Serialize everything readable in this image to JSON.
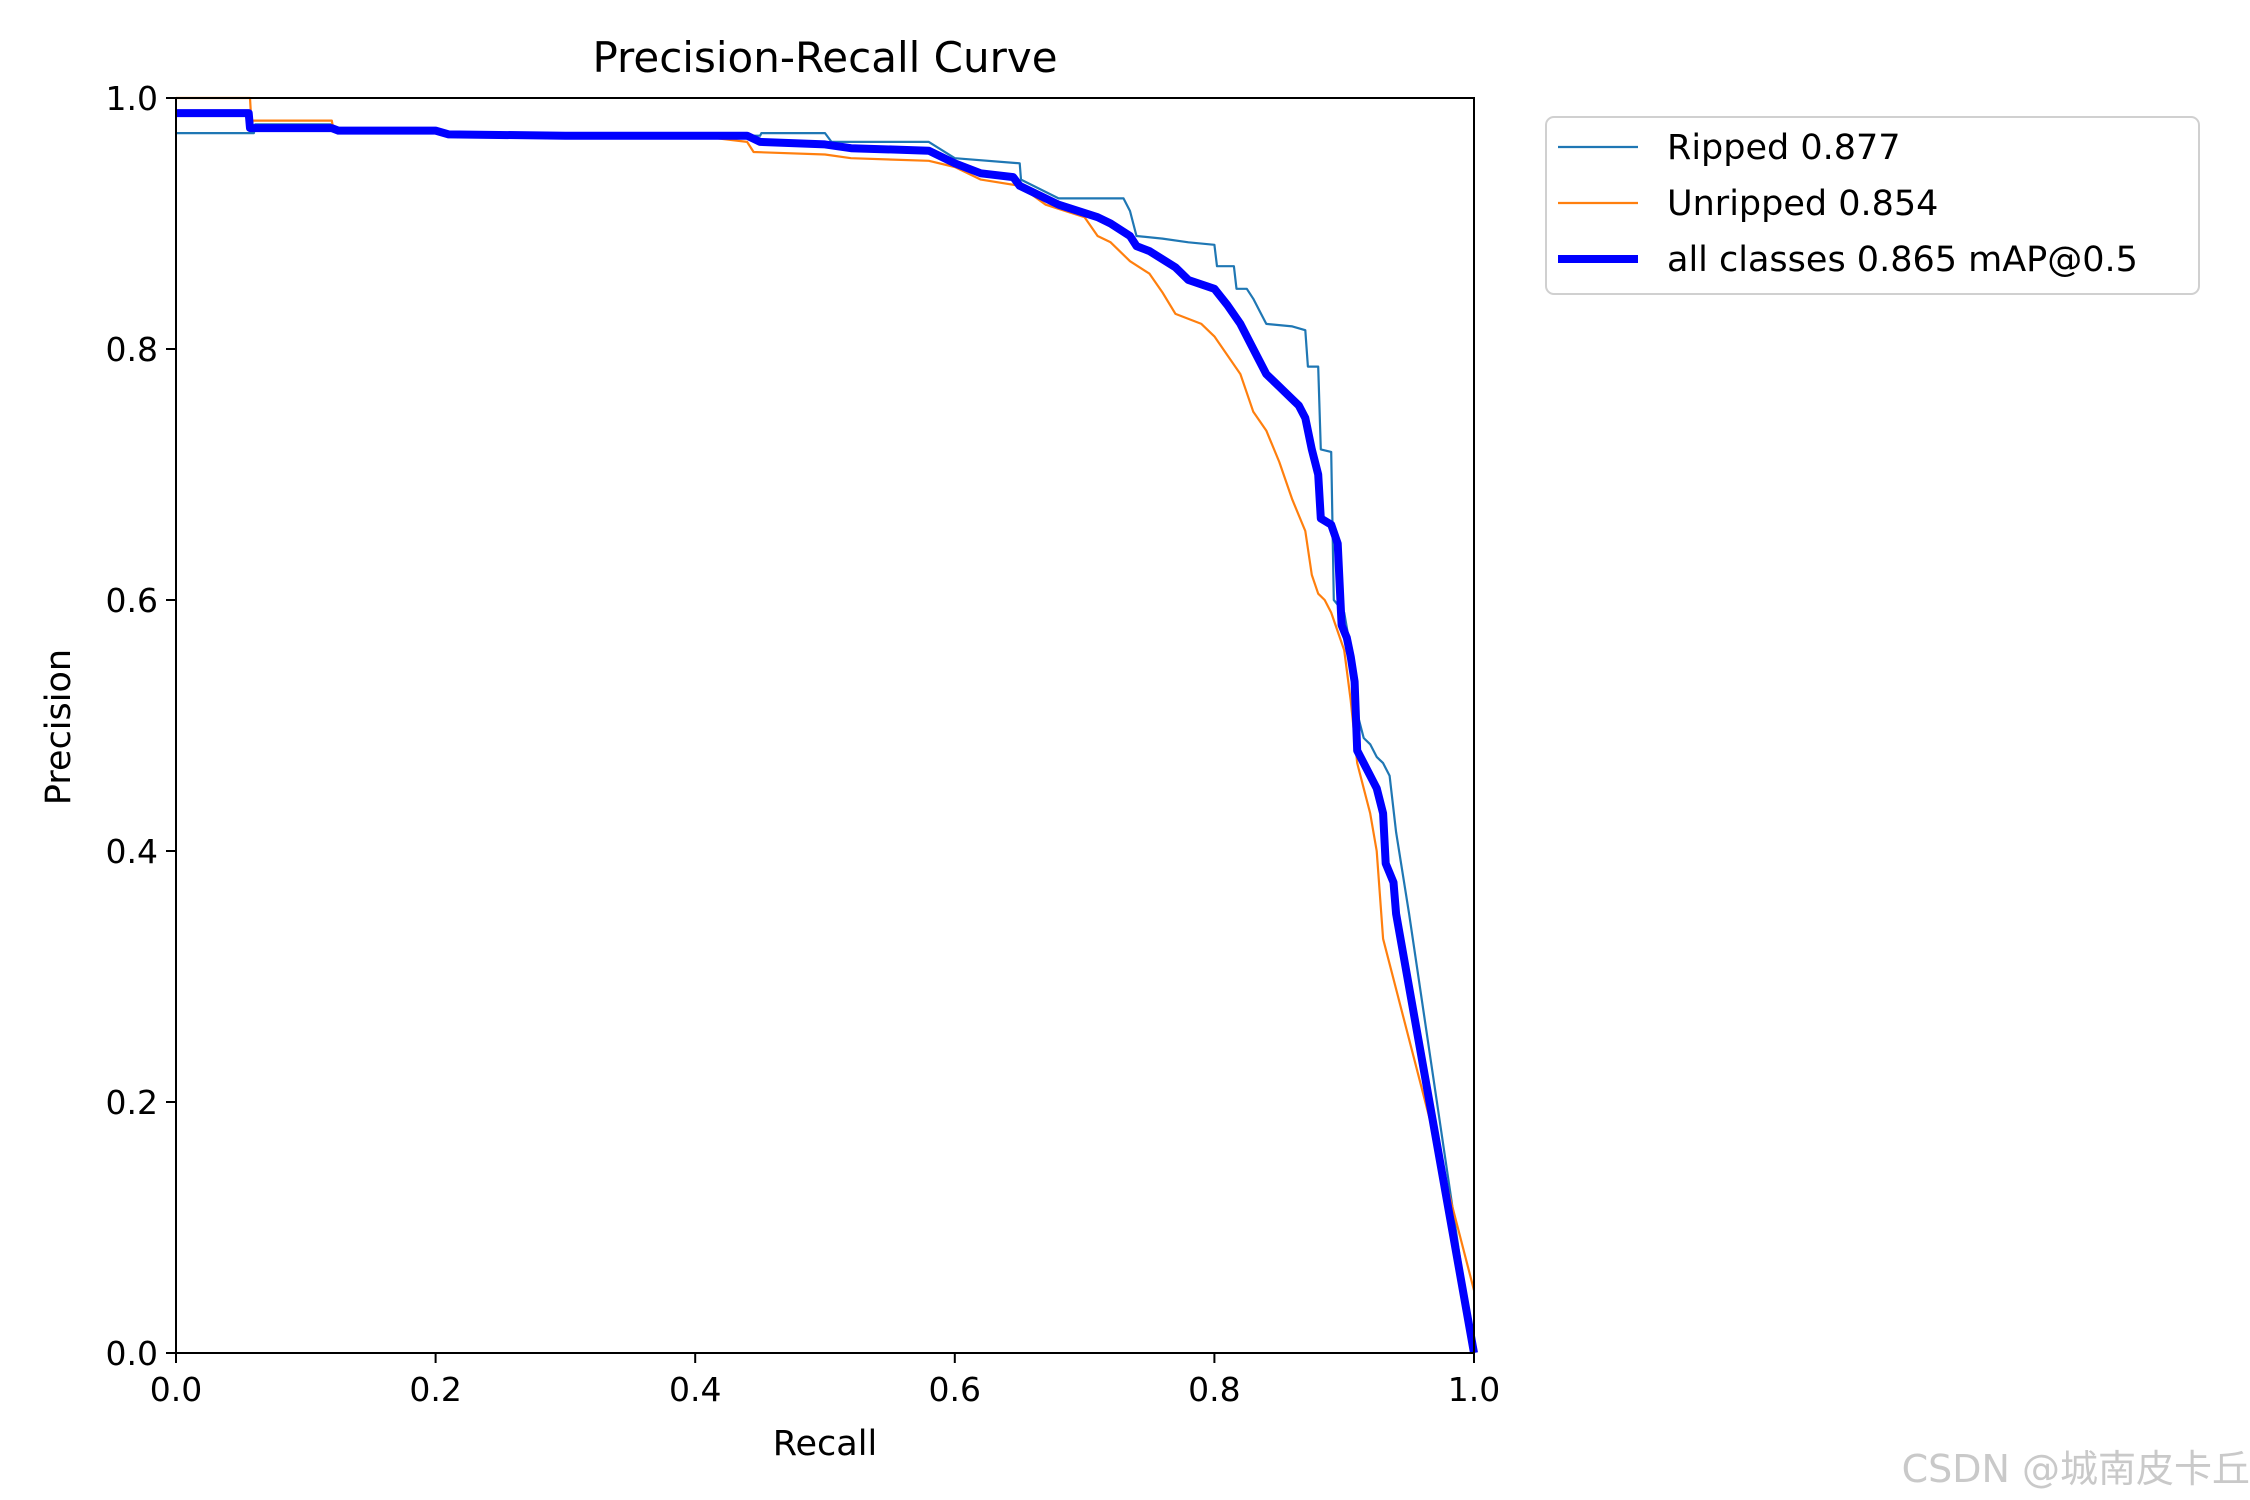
{
  "watermark": "CSDN @城南皮卡丘",
  "chart_data": {
    "type": "line",
    "title": "Precision-Recall Curve",
    "xlabel": "Recall",
    "ylabel": "Precision",
    "xlim": [
      0,
      1
    ],
    "ylim": [
      0,
      1
    ],
    "xticks": [
      "0.0",
      "0.2",
      "0.4",
      "0.6",
      "0.8",
      "1.0"
    ],
    "yticks": [
      "0.0",
      "0.2",
      "0.4",
      "0.6",
      "0.8",
      "1.0"
    ],
    "grid": false,
    "legend_position": "outside-top-right",
    "series": [
      {
        "name": "Ripped 0.877",
        "color": "#1f77b4",
        "width": "thin",
        "points": [
          [
            0,
            0.972
          ],
          [
            0.06,
            0.972
          ],
          [
            0.061,
            0.979
          ],
          [
            0.12,
            0.979
          ],
          [
            0.121,
            0.975
          ],
          [
            0.2,
            0.975
          ],
          [
            0.21,
            0.972
          ],
          [
            0.3,
            0.971
          ],
          [
            0.4,
            0.97
          ],
          [
            0.45,
            0.97
          ],
          [
            0.451,
            0.972
          ],
          [
            0.5,
            0.972
          ],
          [
            0.505,
            0.965
          ],
          [
            0.58,
            0.965
          ],
          [
            0.6,
            0.952
          ],
          [
            0.65,
            0.948
          ],
          [
            0.651,
            0.935
          ],
          [
            0.68,
            0.92
          ],
          [
            0.73,
            0.92
          ],
          [
            0.735,
            0.91
          ],
          [
            0.74,
            0.89
          ],
          [
            0.76,
            0.888
          ],
          [
            0.78,
            0.885
          ],
          [
            0.8,
            0.883
          ],
          [
            0.802,
            0.866
          ],
          [
            0.815,
            0.866
          ],
          [
            0.817,
            0.848
          ],
          [
            0.825,
            0.848
          ],
          [
            0.83,
            0.84
          ],
          [
            0.835,
            0.83
          ],
          [
            0.84,
            0.82
          ],
          [
            0.86,
            0.818
          ],
          [
            0.87,
            0.815
          ],
          [
            0.872,
            0.786
          ],
          [
            0.88,
            0.786
          ],
          [
            0.882,
            0.72
          ],
          [
            0.89,
            0.718
          ],
          [
            0.892,
            0.6
          ],
          [
            0.9,
            0.59
          ],
          [
            0.905,
            0.56
          ],
          [
            0.91,
            0.51
          ],
          [
            0.915,
            0.49
          ],
          [
            0.92,
            0.485
          ],
          [
            0.925,
            0.475
          ],
          [
            0.93,
            0.47
          ],
          [
            0.935,
            0.46
          ],
          [
            0.94,
            0.415
          ],
          [
            0.95,
            0.35
          ],
          [
            1,
            0
          ]
        ]
      },
      {
        "name": "Unripped 0.854",
        "color": "#ff7f0e",
        "width": "thin",
        "points": [
          [
            0,
            1
          ],
          [
            0.057,
            1
          ],
          [
            0.058,
            0.982
          ],
          [
            0.12,
            0.982
          ],
          [
            0.121,
            0.976
          ],
          [
            0.2,
            0.974
          ],
          [
            0.21,
            0.972
          ],
          [
            0.3,
            0.971
          ],
          [
            0.4,
            0.97
          ],
          [
            0.44,
            0.965
          ],
          [
            0.445,
            0.957
          ],
          [
            0.5,
            0.955
          ],
          [
            0.52,
            0.952
          ],
          [
            0.58,
            0.95
          ],
          [
            0.6,
            0.945
          ],
          [
            0.62,
            0.935
          ],
          [
            0.65,
            0.93
          ],
          [
            0.67,
            0.915
          ],
          [
            0.7,
            0.905
          ],
          [
            0.71,
            0.89
          ],
          [
            0.72,
            0.885
          ],
          [
            0.735,
            0.87
          ],
          [
            0.75,
            0.86
          ],
          [
            0.76,
            0.845
          ],
          [
            0.77,
            0.828
          ],
          [
            0.79,
            0.82
          ],
          [
            0.8,
            0.81
          ],
          [
            0.81,
            0.795
          ],
          [
            0.82,
            0.78
          ],
          [
            0.83,
            0.75
          ],
          [
            0.84,
            0.735
          ],
          [
            0.85,
            0.71
          ],
          [
            0.86,
            0.68
          ],
          [
            0.87,
            0.655
          ],
          [
            0.875,
            0.62
          ],
          [
            0.88,
            0.605
          ],
          [
            0.885,
            0.6
          ],
          [
            0.89,
            0.59
          ],
          [
            0.9,
            0.56
          ],
          [
            0.905,
            0.52
          ],
          [
            0.91,
            0.47
          ],
          [
            0.915,
            0.45
          ],
          [
            0.92,
            0.43
          ],
          [
            0.925,
            0.4
          ],
          [
            0.93,
            0.33
          ],
          [
            1,
            0.05
          ]
        ]
      },
      {
        "name": "all classes 0.865 mAP@0.5",
        "color": "#0000ff",
        "width": "thick",
        "points": [
          [
            0,
            0.988
          ],
          [
            0.056,
            0.988
          ],
          [
            0.057,
            0.976
          ],
          [
            0.12,
            0.976
          ],
          [
            0.125,
            0.974
          ],
          [
            0.2,
            0.974
          ],
          [
            0.21,
            0.971
          ],
          [
            0.3,
            0.97
          ],
          [
            0.44,
            0.97
          ],
          [
            0.45,
            0.965
          ],
          [
            0.5,
            0.963
          ],
          [
            0.52,
            0.96
          ],
          [
            0.58,
            0.958
          ],
          [
            0.6,
            0.948
          ],
          [
            0.62,
            0.94
          ],
          [
            0.645,
            0.937
          ],
          [
            0.65,
            0.93
          ],
          [
            0.68,
            0.915
          ],
          [
            0.71,
            0.905
          ],
          [
            0.72,
            0.9
          ],
          [
            0.735,
            0.89
          ],
          [
            0.74,
            0.882
          ],
          [
            0.75,
            0.878
          ],
          [
            0.77,
            0.865
          ],
          [
            0.78,
            0.855
          ],
          [
            0.8,
            0.848
          ],
          [
            0.81,
            0.835
          ],
          [
            0.82,
            0.82
          ],
          [
            0.83,
            0.8
          ],
          [
            0.84,
            0.78
          ],
          [
            0.85,
            0.77
          ],
          [
            0.86,
            0.76
          ],
          [
            0.865,
            0.755
          ],
          [
            0.87,
            0.745
          ],
          [
            0.875,
            0.72
          ],
          [
            0.88,
            0.7
          ],
          [
            0.882,
            0.665
          ],
          [
            0.89,
            0.66
          ],
          [
            0.895,
            0.645
          ],
          [
            0.898,
            0.58
          ],
          [
            0.902,
            0.57
          ],
          [
            0.905,
            0.555
          ],
          [
            0.908,
            0.535
          ],
          [
            0.91,
            0.48
          ],
          [
            0.915,
            0.47
          ],
          [
            0.92,
            0.46
          ],
          [
            0.925,
            0.45
          ],
          [
            0.93,
            0.43
          ],
          [
            0.932,
            0.39
          ],
          [
            0.938,
            0.375
          ],
          [
            0.94,
            0.35
          ],
          [
            1,
            0
          ]
        ]
      }
    ]
  }
}
